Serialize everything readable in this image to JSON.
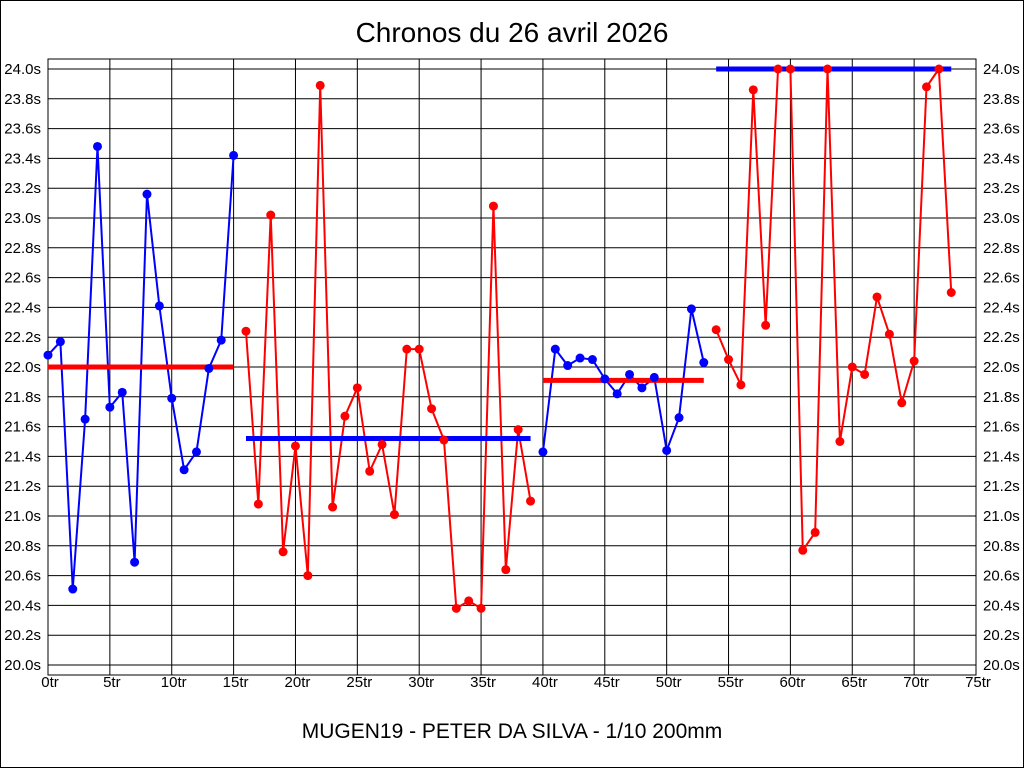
{
  "page": {
    "title": "Chronos du 26 avril 2026",
    "footer": "MUGEN19 - PETER DA SILVA - 1/10 200mm"
  },
  "chart_data": {
    "type": "line",
    "title": "Chronos du 26 avril 2026",
    "subtitle": "MUGEN19 - PETER DA SILVA - 1/10 200mm",
    "x_unit": "tr",
    "y_unit": "s",
    "xlim": [
      0,
      75
    ],
    "ylim": [
      20.0,
      24.0
    ],
    "x_ticks": [
      "0tr",
      "5tr",
      "10tr",
      "15tr",
      "20tr",
      "25tr",
      "30tr",
      "35tr",
      "40tr",
      "45tr",
      "50tr",
      "55tr",
      "60tr",
      "65tr",
      "70tr",
      "75tr"
    ],
    "y_ticks": [
      "24.0s",
      "23.8s",
      "23.6s",
      "23.4s",
      "23.2s",
      "23.0s",
      "22.8s",
      "22.6s",
      "22.4s",
      "22.2s",
      "22.0s",
      "21.8s",
      "21.6s",
      "21.4s",
      "21.2s",
      "21.0s",
      "20.8s",
      "20.6s",
      "20.4s",
      "20.2s",
      "20.0s"
    ],
    "grid": true,
    "legend": "none",
    "colors": {
      "blue": "#0000ff",
      "red": "#ff0000",
      "grid": "#000000",
      "background": "#ffffff"
    },
    "series": [
      {
        "name": "stint-1",
        "color": "blue",
        "mean_color": "red",
        "start_lap": 0,
        "mean": 22.0,
        "mean_clipped_at_ymax": false,
        "values": [
          22.08,
          22.17,
          20.51,
          21.65,
          23.48,
          21.73,
          21.83,
          20.69,
          23.16,
          22.41,
          21.79,
          21.31,
          21.43,
          21.99,
          22.18,
          23.42
        ]
      },
      {
        "name": "stint-2",
        "color": "red",
        "mean_color": "blue",
        "start_lap": 16,
        "mean": 21.52,
        "mean_clipped_at_ymax": false,
        "values": [
          22.24,
          21.08,
          23.02,
          20.76,
          21.47,
          20.6,
          23.89,
          21.06,
          21.67,
          21.86,
          21.3,
          21.48,
          21.01,
          22.12,
          22.12,
          21.72,
          21.51,
          20.38,
          20.43,
          20.38,
          23.08,
          20.64,
          21.58,
          21.1
        ]
      },
      {
        "name": "stint-3",
        "color": "blue",
        "mean_color": "red",
        "start_lap": 40,
        "mean": 21.91,
        "mean_clipped_at_ymax": false,
        "values": [
          21.43,
          22.12,
          22.01,
          22.06,
          22.05,
          21.92,
          21.82,
          21.95,
          21.86,
          21.93,
          21.44,
          21.66,
          22.39,
          22.03
        ]
      },
      {
        "name": "stint-4",
        "color": "red",
        "mean_color": "blue",
        "start_lap": 54,
        "mean": 24.0,
        "mean_clipped_at_ymax": true,
        "values": [
          22.25,
          22.05,
          21.88,
          23.86,
          22.28,
          24.0,
          24.0,
          20.77,
          20.89,
          24.0,
          21.5,
          22.0,
          21.95,
          22.47,
          22.22,
          21.76,
          22.04,
          23.88,
          24.0,
          22.5
        ]
      }
    ]
  }
}
